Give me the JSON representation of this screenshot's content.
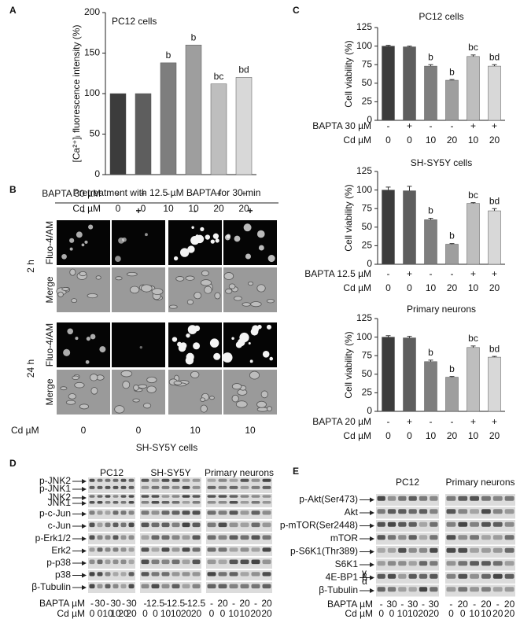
{
  "chart_data": [
    {
      "type": "bar",
      "panel": "A",
      "title": "PC12 cells",
      "ylabel": "[Ca²⁺]ᵢ fluorescence intensity (%)",
      "values": [
        100,
        100,
        138,
        160,
        112,
        120
      ],
      "colors": [
        "#3c3c3c",
        "#5e5e5e",
        "#7e7e7e",
        "#9e9e9e",
        "#bebebe",
        "#d8d8d8"
      ],
      "ylim": [
        0,
        200
      ],
      "yticks": [
        0,
        50,
        100,
        150,
        200
      ],
      "annotations": [
        null,
        null,
        "b",
        "b",
        "bc",
        "bd"
      ],
      "conditions": [
        {
          "label": "BAPTA 30 µM",
          "values": [
            "-",
            "+",
            "-",
            "-",
            "+",
            "+"
          ]
        },
        {
          "label": "Cd µM",
          "values": [
            "0",
            "0",
            "10",
            "10",
            "20",
            "20"
          ]
        }
      ]
    },
    {
      "type": "bar",
      "panel": "C",
      "title": "PC12 cells",
      "ylabel": "Cell viability (%)",
      "values": [
        100,
        99,
        73,
        54,
        86,
        73
      ],
      "errors": [
        1,
        1,
        2,
        1,
        2,
        2
      ],
      "colors": [
        "#3c3c3c",
        "#5e5e5e",
        "#7e7e7e",
        "#9e9e9e",
        "#bebebe",
        "#d8d8d8"
      ],
      "ylim": [
        0,
        125
      ],
      "yticks": [
        0,
        25,
        50,
        75,
        100,
        125
      ],
      "annotations": [
        null,
        null,
        "b",
        "b",
        "bc",
        "bd"
      ],
      "conditions": [
        {
          "label": "BAPTA 30 µM",
          "values": [
            "-",
            "+",
            "-",
            "-",
            "+",
            "+"
          ]
        },
        {
          "label": "Cd µM",
          "values": [
            "0",
            "0",
            "10",
            "20",
            "10",
            "20"
          ]
        }
      ]
    },
    {
      "type": "bar",
      "title": "SH-SY5Y cells",
      "ylabel": "Cell viability (%)",
      "values": [
        100,
        99,
        60,
        27,
        82,
        72
      ],
      "errors": [
        4,
        6,
        2,
        1,
        1,
        3
      ],
      "colors": [
        "#3c3c3c",
        "#5e5e5e",
        "#7e7e7e",
        "#9e9e9e",
        "#bebebe",
        "#d8d8d8"
      ],
      "ylim": [
        0,
        125
      ],
      "yticks": [
        0,
        25,
        50,
        75,
        100,
        125
      ],
      "annotations": [
        null,
        null,
        "b",
        "b",
        "bc",
        "bd"
      ],
      "conditions": [
        {
          "label": "BAPTA 12.5 µM",
          "values": [
            "-",
            "+",
            "-",
            "-",
            "+",
            "+"
          ]
        },
        {
          "label": "Cd µM",
          "values": [
            "0",
            "0",
            "10",
            "20",
            "10",
            "20"
          ]
        }
      ]
    },
    {
      "type": "bar",
      "title": "Primary neurons",
      "ylabel": "Cell viability (%)",
      "values": [
        100,
        99,
        67,
        46,
        86,
        73
      ],
      "errors": [
        2,
        2,
        2,
        1,
        2,
        1
      ],
      "colors": [
        "#3c3c3c",
        "#5e5e5e",
        "#7e7e7e",
        "#9e9e9e",
        "#bebebe",
        "#d8d8d8"
      ],
      "ylim": [
        0,
        125
      ],
      "yticks": [
        0,
        25,
        50,
        75,
        100,
        125
      ],
      "annotations": [
        null,
        null,
        "b",
        "b",
        "bc",
        "bd"
      ],
      "conditions": [
        {
          "label": "BAPTA 20 µM",
          "values": [
            "-",
            "+",
            "-",
            "-",
            "+",
            "+"
          ]
        },
        {
          "label": "Cd µM",
          "values": [
            "0",
            "0",
            "10",
            "20",
            "10",
            "20"
          ]
        }
      ]
    }
  ],
  "panels": [
    {
      "panel": "B",
      "title": "Pretreatment with 12.5 µM BAPTA for 30 min",
      "columns": [
        "-",
        "+",
        "-",
        "+"
      ],
      "times": [
        "2 h",
        "24 h"
      ],
      "stains": [
        "Fluo-4/AM",
        "Merge"
      ],
      "cd_label": "Cd µM",
      "cd": [
        "0",
        "0",
        "10",
        "10"
      ],
      "caption": "SH-SY5Y cells"
    },
    {
      "panel": "D",
      "bapta_label": "BAPTA µM",
      "cd_label": "Cd µM",
      "groups": [
        {
          "name": "PC12",
          "bapta": [
            "-",
            "30",
            "-",
            "30",
            "-",
            "30"
          ],
          "cd": [
            "0",
            "0",
            "10",
            "10",
            "20",
            "20"
          ]
        },
        {
          "name": "SH-SY5Y",
          "bapta": [
            "-",
            "12.5",
            "-",
            "12.5",
            "-",
            "12.5"
          ],
          "cd": [
            "0",
            "0",
            "10",
            "10",
            "20",
            "20"
          ]
        },
        {
          "name": "Primary neurons",
          "bapta": [
            "-",
            "20",
            "-",
            "20",
            "-",
            "20"
          ],
          "cd": [
            "0",
            "0",
            "10",
            "10",
            "20",
            "20"
          ]
        }
      ],
      "strips": [
        [
          "p-JNK2",
          "p-JNK1"
        ],
        [
          "JNK2",
          "JNK1"
        ],
        [
          "p-c-Jun"
        ],
        [
          "c-Jun"
        ],
        [
          "p-Erk1/2"
        ],
        [
          "Erk2"
        ],
        [
          "p-p38"
        ],
        [
          "p38"
        ],
        [
          "β-Tubulin"
        ]
      ]
    },
    {
      "panel": "E",
      "bapta_label": "BAPTA µM",
      "cd_label": "Cd µM",
      "isoforms": [
        "γ",
        "β",
        "α"
      ],
      "groups": [
        {
          "name": "PC12",
          "bapta": [
            "-",
            "30",
            "-",
            "30",
            "-",
            "30"
          ],
          "cd": [
            "0",
            "0",
            "10",
            "10",
            "20",
            "20"
          ]
        },
        {
          "name": "Primary neurons",
          "bapta": [
            "-",
            "20",
            "-",
            "20",
            "-",
            "20"
          ],
          "cd": [
            "0",
            "0",
            "10",
            "10",
            "20",
            "20"
          ]
        }
      ],
      "strips": [
        [
          "p-Akt(Ser473)"
        ],
        [
          "Akt"
        ],
        [
          "p-mTOR(Ser2448)"
        ],
        [
          "mTOR"
        ],
        [
          "p-S6K1(Thr389)"
        ],
        [
          "S6K1"
        ],
        [
          "4E-BP1"
        ],
        [
          "β-Tubulin"
        ]
      ]
    }
  ]
}
